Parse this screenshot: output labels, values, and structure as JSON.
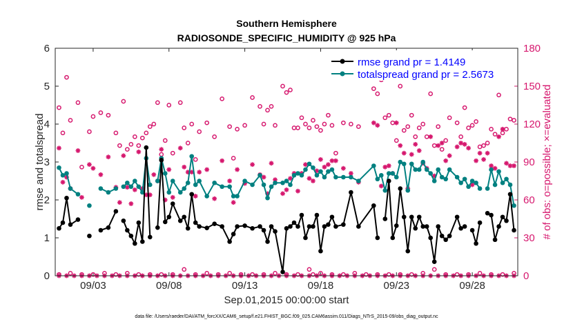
{
  "chart_data": {
    "type": "line",
    "title_line1": "Southern Hemisphere",
    "title_line2": "RADIOSONDE_SPECIFIC_HUMIDITY @ 925 hPa",
    "xlabel": "Sep.01,2015 00:00:00 start",
    "ylabel_left": "rmse and totalspread",
    "ylabel_right": "# of obs: o=possible; ×=evaluated",
    "footer": "data file: /Users/raeder/DAI/ATM_forcXX/CAM6_setup/f.e21.FHIST_BGC.f09_025.CAM6assim.011/Diags_NTrS_2015-09/obs_diag_output.nc",
    "x_range": [
      0.5,
      31.0
    ],
    "y_left_range": [
      0,
      6
    ],
    "y_right_range": [
      0,
      180
    ],
    "x_ticks": [
      {
        "x": 3,
        "label": "09/03"
      },
      {
        "x": 8,
        "label": "09/08"
      },
      {
        "x": 13,
        "label": "09/13"
      },
      {
        "x": 18,
        "label": "09/18"
      },
      {
        "x": 23,
        "label": "09/23"
      },
      {
        "x": 28,
        "label": "09/28"
      }
    ],
    "y_left_ticks": [
      0,
      1,
      2,
      3,
      4,
      5,
      6
    ],
    "y_right_ticks": [
      0,
      30,
      60,
      90,
      120,
      150,
      180
    ],
    "legend": [
      {
        "label": "rmse grand pr = 1.4149",
        "color": "#000000"
      },
      {
        "label": "totalspread grand pr = 2.5673",
        "color": "#008080"
      }
    ],
    "colors": {
      "rmse": "#000000",
      "spread": "#008080",
      "obs": "#d6186e",
      "legend_text": "#0000ff"
    },
    "series": [
      {
        "name": "rmse",
        "x": [
          0.75,
          1.0,
          1.25,
          1.5,
          2.0,
          2.25,
          2.75,
          3.0,
          3.5,
          4.0,
          4.5,
          4.75,
          5.0,
          5.25,
          5.5,
          5.75,
          6.0,
          6.25,
          6.5,
          6.75,
          7.0,
          7.25,
          7.5,
          7.75,
          8.0,
          8.25,
          8.75,
          9.0,
          9.25,
          9.5,
          9.75,
          10.0,
          10.5,
          11.0,
          11.5,
          12.0,
          12.25,
          12.5,
          13.0,
          13.5,
          14.0,
          14.25,
          14.5,
          14.75,
          15.0,
          15.5,
          15.75,
          16.0,
          16.25,
          16.5,
          16.75,
          17.0,
          17.25,
          17.5,
          17.75,
          18.0,
          18.25,
          18.5,
          18.75,
          19.0,
          19.5,
          20.0,
          20.5,
          21.5,
          21.75,
          22.0,
          22.25,
          22.5,
          22.75,
          23.0,
          23.25,
          23.5,
          23.75,
          24.0,
          24.25,
          24.5,
          24.75,
          25.0,
          25.25,
          25.5,
          25.75,
          26.0,
          26.25,
          26.5,
          27.0,
          27.25,
          27.5,
          27.75,
          28.0,
          28.25,
          28.5,
          28.75,
          29.0,
          29.25,
          29.5,
          29.75,
          30.0,
          30.25,
          30.5,
          30.75
        ],
        "y": [
          1.25,
          1.4,
          2.05,
          1.35,
          1.48,
          null,
          1.05,
          null,
          1.2,
          1.27,
          1.7,
          null,
          1.45,
          1.2,
          1.05,
          0.85,
          1.4,
          0.9,
          3.38,
          1.02,
          null,
          1.27,
          3.05,
          1.42,
          1.55,
          1.9,
          1.45,
          1.55,
          1.25,
          2.15,
          1.4,
          1.3,
          1.26,
          1.37,
          1.3,
          0.9,
          1.1,
          1.3,
          1.32,
          1.25,
          1.3,
          1.2,
          0.9,
          1.3,
          1.17,
          0.1,
          1.25,
          1.3,
          1.4,
          1.3,
          1.6,
          1.0,
          1.3,
          1.3,
          1.6,
          0.65,
          1.3,
          1.35,
          1.55,
          1.3,
          1.35,
          2.2,
          1.3,
          1.85,
          1.0,
          null,
          1.5,
          2.5,
          1.0,
          1.32,
          2.3,
          1.55,
          0.65,
          1.55,
          1.25,
          1.55,
          1.3,
          1.3,
          1.0,
          0.37,
          1.3,
          1.05,
          0.95,
          1.05,
          1.55,
          1.25,
          1.3,
          null,
          1.2,
          0.85,
          1.4,
          null,
          1.65,
          1.6,
          0.95,
          1.3,
          1.55,
          1.45,
          2.15,
          1.2
        ]
      },
      {
        "name": "totalspread",
        "x": [
          0.75,
          1.0,
          1.25,
          1.5,
          2.0,
          2.25,
          2.75,
          3.0,
          3.5,
          4.0,
          4.5,
          4.75,
          5.0,
          5.25,
          5.5,
          5.75,
          6.0,
          6.25,
          6.5,
          6.75,
          7.0,
          7.25,
          7.5,
          7.75,
          8.0,
          8.25,
          8.75,
          9.0,
          9.25,
          9.5,
          9.75,
          10.0,
          10.5,
          11.0,
          11.5,
          12.0,
          12.25,
          12.5,
          13.0,
          13.5,
          14.0,
          14.25,
          14.5,
          14.75,
          15.0,
          15.5,
          15.75,
          16.0,
          16.25,
          16.5,
          16.75,
          17.0,
          17.25,
          17.5,
          17.75,
          18.0,
          18.25,
          18.5,
          18.75,
          19.0,
          19.5,
          20.0,
          20.5,
          21.5,
          21.75,
          22.0,
          22.25,
          22.5,
          22.75,
          23.0,
          23.25,
          23.5,
          23.75,
          24.0,
          24.25,
          24.5,
          24.75,
          25.0,
          25.25,
          25.5,
          25.75,
          26.0,
          26.25,
          26.5,
          27.0,
          27.25,
          27.5,
          27.75,
          28.0,
          28.25,
          28.5,
          28.75,
          29.0,
          29.25,
          29.5,
          29.75,
          30.0,
          30.25,
          30.5,
          30.75
        ],
        "y": [
          2.85,
          2.65,
          2.7,
          2.3,
          2.15,
          null,
          1.85,
          null,
          2.3,
          2.2,
          2.3,
          null,
          2.35,
          2.45,
          2.35,
          2.5,
          2.35,
          2.2,
          3.1,
          2.4,
          null,
          2.5,
          3.1,
          2.7,
          2.2,
          2.5,
          2.2,
          2.3,
          2.45,
          3.15,
          2.4,
          2.5,
          2.1,
          2.45,
          2.35,
          2.35,
          2.1,
          2.1,
          2.5,
          2.4,
          2.65,
          2.4,
          2.05,
          2.35,
          2.45,
          2.45,
          2.5,
          2.4,
          2.65,
          2.7,
          2.65,
          2.8,
          2.95,
          2.85,
          2.65,
          2.75,
          2.6,
          2.75,
          2.8,
          2.6,
          2.6,
          2.6,
          2.5,
          2.9,
          2.55,
          2.65,
          2.25,
          2.7,
          2.7,
          2.6,
          3.0,
          2.95,
          2.25,
          2.95,
          2.8,
          2.8,
          3.0,
          2.8,
          2.7,
          2.5,
          2.8,
          2.6,
          2.55,
          2.8,
          2.6,
          2.45,
          2.55,
          2.35,
          2.5,
          2.45,
          2.3,
          null,
          2.3,
          2.8,
          2.4,
          2.75,
          2.45,
          2.55,
          2.4,
          1.85
        ]
      }
    ],
    "obs_possible": {
      "x": [
        0.75,
        1.0,
        1.25,
        1.5,
        2.0,
        2.25,
        2.75,
        3.0,
        3.5,
        4.0,
        4.5,
        4.75,
        5.0,
        5.25,
        5.5,
        5.75,
        6.0,
        6.25,
        6.5,
        6.75,
        7.0,
        7.25,
        7.5,
        7.75,
        8.0,
        8.25,
        8.75,
        9.0,
        9.25,
        9.5,
        9.75,
        10.0,
        10.5,
        11.0,
        11.5,
        12.0,
        12.25,
        12.5,
        13.0,
        13.5,
        14.0,
        14.25,
        14.5,
        14.75,
        15.0,
        15.5,
        15.75,
        16.0,
        16.25,
        16.5,
        16.75,
        17.0,
        17.25,
        17.5,
        17.75,
        18.0,
        18.25,
        18.5,
        18.75,
        19.0,
        19.5,
        20.0,
        20.5,
        21.5,
        21.75,
        22.0,
        22.25,
        22.5,
        22.75,
        23.0,
        23.25,
        23.5,
        23.75,
        24.0,
        24.25,
        24.5,
        24.75,
        25.0,
        25.25,
        25.5,
        25.75,
        26.0,
        26.25,
        26.5,
        27.0,
        27.25,
        27.5,
        27.75,
        28.0,
        28.25,
        28.5,
        28.75,
        29.0,
        29.25,
        29.5,
        29.75,
        30.0,
        30.25,
        30.5,
        30.75
      ],
      "y": [
        133,
        113,
        157,
        123,
        137,
        86,
        114,
        126,
        129,
        127,
        113,
        103,
        138,
        100,
        104,
        110,
        103,
        109,
        113,
        118,
        120,
        137,
        96,
        107,
        135,
        97,
        137,
        117,
        105,
        120,
        92,
        114,
        121,
        110,
        140,
        118,
        93,
        116,
        119,
        141,
        134,
        120,
        131,
        134,
        119,
        150,
        145,
        147,
        117,
        117,
        125,
        120,
        117,
        123,
        118,
        115,
        120,
        127,
        119,
        97,
        121,
        120,
        118,
        148,
        144,
        155,
        125,
        127,
        121,
        107,
        150,
        115,
        118,
        127,
        110,
        117,
        120,
        110,
        144,
        103,
        118,
        100,
        107,
        125,
        121,
        110,
        133,
        117,
        119,
        122,
        102,
        103,
        105,
        116,
        112,
        143,
        113,
        116,
        124,
        123
      ]
    },
    "obs_evaluated": {
      "x": [
        0.75,
        1.0,
        1.25,
        1.5,
        2.0,
        2.25,
        2.75,
        3.0,
        3.5,
        4.0,
        4.5,
        4.75,
        5.0,
        5.25,
        5.5,
        5.75,
        6.0,
        6.25,
        6.5,
        6.75,
        7.0,
        7.25,
        7.5,
        7.75,
        8.0,
        8.25,
        8.75,
        9.0,
        9.25,
        9.5,
        9.75,
        10.0,
        10.5,
        11.0,
        11.5,
        12.0,
        12.25,
        12.5,
        13.0,
        13.5,
        14.0,
        14.25,
        14.5,
        14.75,
        15.0,
        15.5,
        15.75,
        16.0,
        16.25,
        16.5,
        16.75,
        17.0,
        17.25,
        17.5,
        17.75,
        18.0,
        18.25,
        18.5,
        18.75,
        19.0,
        19.5,
        20.0,
        20.5,
        21.5,
        21.75,
        22.0,
        22.25,
        22.5,
        22.75,
        23.0,
        23.25,
        23.5,
        23.75,
        24.0,
        24.25,
        24.5,
        24.75,
        25.0,
        25.25,
        25.5,
        25.75,
        26.0,
        26.25,
        26.5,
        27.0,
        27.25,
        27.5,
        27.75,
        28.0,
        28.25,
        28.5,
        28.75,
        29.0,
        29.25,
        29.5,
        29.75,
        30.0,
        30.25,
        30.5,
        30.75
      ],
      "y": [
        101,
        74,
        78,
        69,
        99,
        62,
        88,
        85,
        80,
        94,
        70,
        58,
        95,
        70,
        57,
        68,
        98,
        69,
        64,
        64,
        80,
        75,
        100,
        60,
        84,
        62,
        101,
        86,
        82,
        82,
        63,
        82,
        84,
        61,
        91,
        75,
        58,
        84,
        73,
        88,
        80,
        78,
        65,
        89,
        76,
        65,
        68,
        77,
        81,
        67,
        81,
        88,
        77,
        75,
        83,
        92,
        86,
        88,
        91,
        91,
        85,
        81,
        74,
        121,
        119,
        71,
        86,
        87,
        81,
        121,
        103,
        97,
        69,
        96,
        104,
        99,
        89,
        85,
        110,
        79,
        103,
        105,
        91,
        95,
        102,
        105,
        104,
        101,
        72,
        91,
        97,
        92,
        97,
        87,
        85,
        110,
        116,
        89,
        87,
        87
      ]
    },
    "obs_possible_zero": {
      "x": [
        0.75,
        1.5,
        2.25,
        3.0,
        3.75,
        4.5,
        5.25,
        6.0,
        6.75,
        7.5,
        8.25,
        9.0,
        9.75,
        10.5,
        11.25,
        12.0,
        12.75,
        13.5,
        14.25,
        15.0,
        15.75,
        16.5,
        17.25,
        17.5,
        18.0,
        18.75,
        19.5,
        20.25,
        21.0,
        21.75,
        22.5,
        23.25,
        24.0,
        24.75,
        25.5,
        26.25,
        27.0,
        27.75,
        28.5,
        29.25,
        30.0,
        30.75
      ],
      "y": [
        1,
        2,
        1,
        1,
        2,
        1,
        2,
        1,
        1,
        1,
        1,
        5,
        1,
        2,
        1,
        2,
        1,
        1,
        1,
        2,
        1,
        1,
        5,
        1,
        2,
        1,
        1,
        2,
        1,
        1,
        1,
        1,
        1,
        2,
        5,
        1,
        1,
        1,
        2,
        1,
        1,
        2
      ]
    },
    "obs_evaluated_zero": {
      "x": [
        0.75,
        1.25,
        1.75,
        2.25,
        2.75,
        3.25,
        3.75,
        4.25,
        4.75,
        5.25,
        5.75,
        6.25,
        6.75,
        7.25,
        7.75,
        8.25,
        8.75,
        9.25,
        9.75,
        10.25,
        10.75,
        11.25,
        11.75,
        12.25,
        12.75,
        13.25,
        13.75,
        14.25,
        14.75,
        15.25,
        15.75,
        16.25,
        16.75,
        17.25,
        17.75,
        18.25,
        18.75,
        19.25,
        19.75,
        20.25,
        20.75,
        21.25,
        21.75,
        22.25,
        22.75,
        23.25,
        23.75,
        24.25,
        24.75,
        25.25,
        25.75,
        26.25,
        26.75,
        27.25,
        27.75,
        28.25,
        28.75,
        29.25,
        29.75,
        30.25,
        30.75
      ],
      "y": [
        0,
        0,
        0,
        0,
        0,
        0,
        0,
        0,
        0,
        0,
        0,
        0,
        0,
        0,
        0,
        0,
        0,
        0,
        0,
        0,
        0,
        0,
        0,
        0,
        0,
        0,
        0,
        0,
        0,
        0,
        0,
        0,
        0,
        0,
        0,
        0,
        0,
        0,
        0,
        0,
        0,
        0,
        0,
        0,
        0,
        0,
        0,
        0,
        0,
        0,
        0,
        0,
        0,
        0,
        0,
        0,
        0,
        0,
        0,
        0,
        0
      ]
    }
  }
}
